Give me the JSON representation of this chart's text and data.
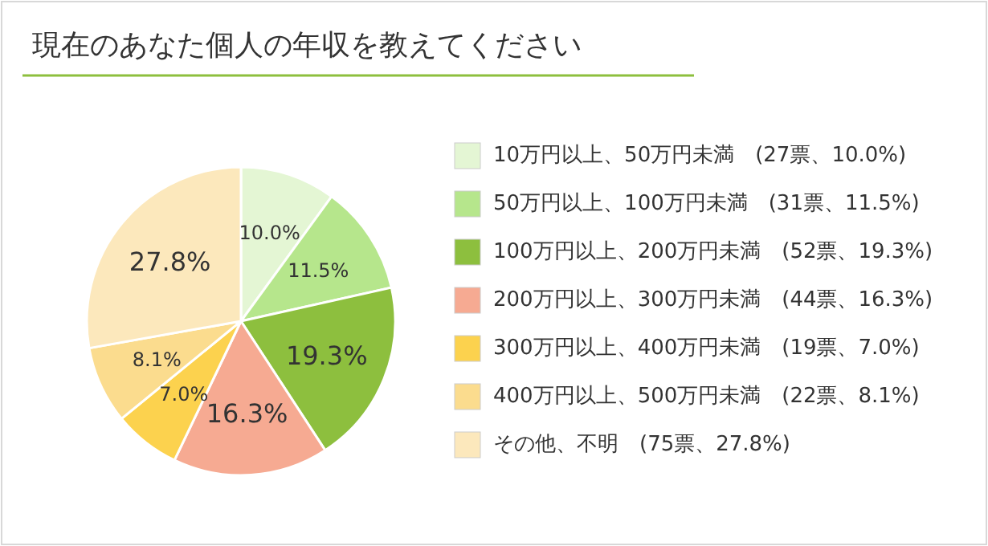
{
  "chart_data": {
    "type": "pie",
    "title": "現在のあなた個人の年収を教えてください",
    "categories": [
      "10万円以上、50万円未満　(27票、10.0%)",
      "50万円以上、100万円未満　(31票、11.5%)",
      "100万円以上、200万円未満　(52票、19.3%)",
      "200万円以上、300万円未満　(44票、16.3%)",
      "300万円以上、400万円未満　(19票、7.0%)",
      "400万円以上、500万円未満　(22票、8.1%)",
      "その他、不明　(75票、27.8%)"
    ],
    "values": [
      10.0,
      11.5,
      19.3,
      16.3,
      7.0,
      8.1,
      27.8
    ],
    "value_labels": [
      "10.0%",
      "11.5%",
      "19.3%",
      "16.3%",
      "7.0%",
      "8.1%",
      "27.8%"
    ],
    "colors": [
      "#e4f6d4",
      "#b6e68c",
      "#8dbf3e",
      "#f6aa92",
      "#fcd24e",
      "#fbdc8e",
      "#fce8bc"
    ],
    "legend": "right"
  }
}
